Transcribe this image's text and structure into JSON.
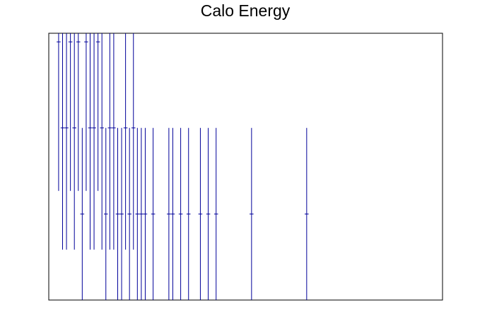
{
  "chart_data": {
    "type": "histogram",
    "title": "Calo Energy",
    "color": "#000099",
    "bins": [
      0,
      1,
      2,
      3,
      4,
      5,
      6,
      7,
      8,
      9,
      10,
      11,
      12,
      13,
      14,
      15,
      16,
      17,
      18,
      19,
      20,
      21,
      22,
      23,
      24,
      25,
      26,
      27,
      28,
      29,
      30,
      31,
      32,
      33,
      34,
      35,
      36,
      37,
      38,
      39,
      40,
      41,
      42,
      43,
      44,
      45,
      46,
      47,
      48,
      49,
      50,
      51,
      52,
      53,
      54,
      55,
      56,
      57,
      58,
      59,
      60,
      61,
      62,
      63,
      64,
      65,
      66,
      67,
      68,
      69,
      70,
      71,
      72,
      73,
      74,
      75,
      76,
      77,
      78,
      79,
      80,
      81,
      82,
      83,
      84,
      85,
      86,
      87,
      88,
      89,
      90,
      91,
      92,
      93,
      94,
      95,
      96,
      97,
      98,
      99,
      100
    ],
    "values": [
      0,
      0,
      3,
      2,
      2,
      3,
      2,
      3,
      1,
      3,
      2,
      2,
      3,
      2,
      1,
      2,
      2,
      1,
      1,
      2,
      1,
      2,
      1,
      1,
      1,
      0,
      1,
      0,
      0,
      0,
      1,
      1,
      0,
      1,
      0,
      1,
      0,
      0,
      1,
      0,
      1,
      0,
      1,
      0,
      0,
      0,
      0,
      0,
      0,
      0,
      0,
      1,
      0,
      0,
      0,
      0,
      0,
      0,
      0,
      0,
      0,
      0,
      0,
      0,
      0,
      1,
      0,
      0,
      0,
      0,
      0,
      0,
      0,
      0,
      0,
      0,
      0,
      0,
      0,
      0,
      0,
      0,
      0,
      0,
      0,
      0,
      0,
      0,
      0,
      0,
      0,
      0,
      0,
      0,
      0,
      0,
      0,
      0,
      0,
      0
    ],
    "xlim": [
      0,
      100
    ],
    "ylim": [
      0,
      3.1
    ]
  }
}
